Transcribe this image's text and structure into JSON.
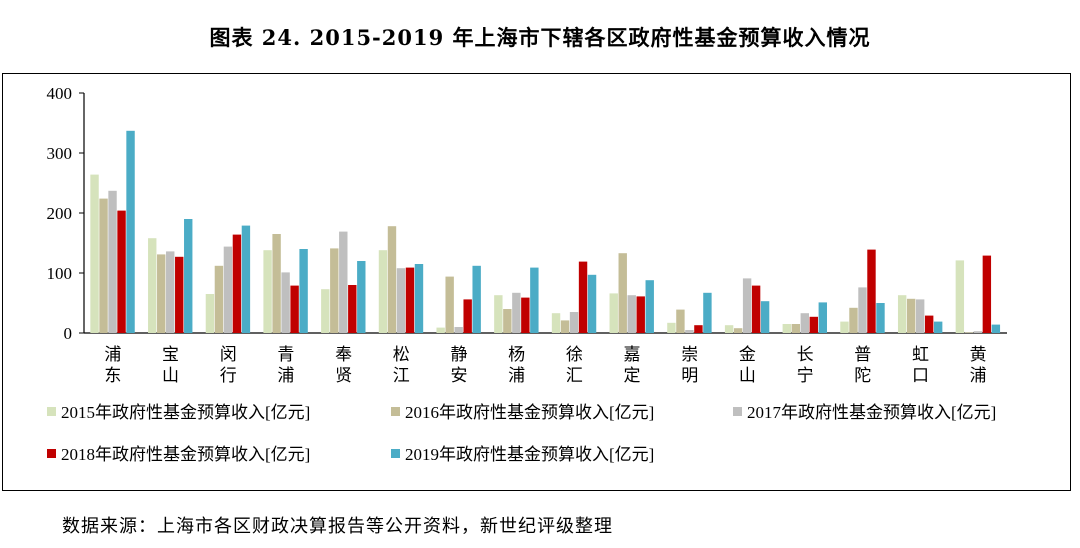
{
  "page": {
    "title": "图表 24. 2015-2019 年上海市下辖各区政府性基金预算收入情况",
    "source": "数据来源：上海市各区财政决算报告等公开资料，新世纪评级整理"
  },
  "chart_data": {
    "type": "bar",
    "categories": [
      "浦东",
      "宝山",
      "闵行",
      "青浦",
      "奉贤",
      "松江",
      "静安",
      "杨浦",
      "徐汇",
      "嘉定",
      "崇明",
      "金山",
      "长宁",
      "普陀",
      "虹口",
      "黄浦"
    ],
    "yticks": [
      "0",
      "100",
      "200",
      "300",
      "400"
    ],
    "ylim": [
      0,
      400
    ],
    "grid": false,
    "legend_position": "bottom",
    "series": [
      {
        "name": "2015年政府性基金预算收入[亿元]",
        "color": "#d6e3bc",
        "values": [
          264,
          158,
          65,
          138,
          73,
          138,
          9,
          63,
          33,
          66,
          17,
          13,
          15,
          19,
          63,
          121
        ]
      },
      {
        "name": "2016年政府性基金预算收入[亿元]",
        "color": "#c4bd97",
        "values": [
          224,
          131,
          112,
          165,
          141,
          178,
          94,
          40,
          21,
          133,
          39,
          8,
          15,
          42,
          57,
          1
        ]
      },
      {
        "name": "2017年政府性基金预算收入[亿元]",
        "color": "#bfbfbf",
        "values": [
          237,
          136,
          144,
          101,
          169,
          108,
          10,
          67,
          35,
          63,
          5,
          91,
          33,
          76,
          56,
          3
        ]
      },
      {
        "name": "2018年政府性基金预算收入[亿元]",
        "color": "#c00000",
        "values": [
          204,
          127,
          164,
          79,
          80,
          109,
          56,
          59,
          119,
          61,
          13,
          79,
          27,
          139,
          29,
          129
        ]
      },
      {
        "name": "2019年政府性基金预算收入[亿元]",
        "color": "#4bacc6",
        "values": [
          337,
          190,
          179,
          140,
          120,
          115,
          112,
          109,
          97,
          88,
          67,
          53,
          51,
          50,
          19,
          14
        ]
      }
    ]
  }
}
